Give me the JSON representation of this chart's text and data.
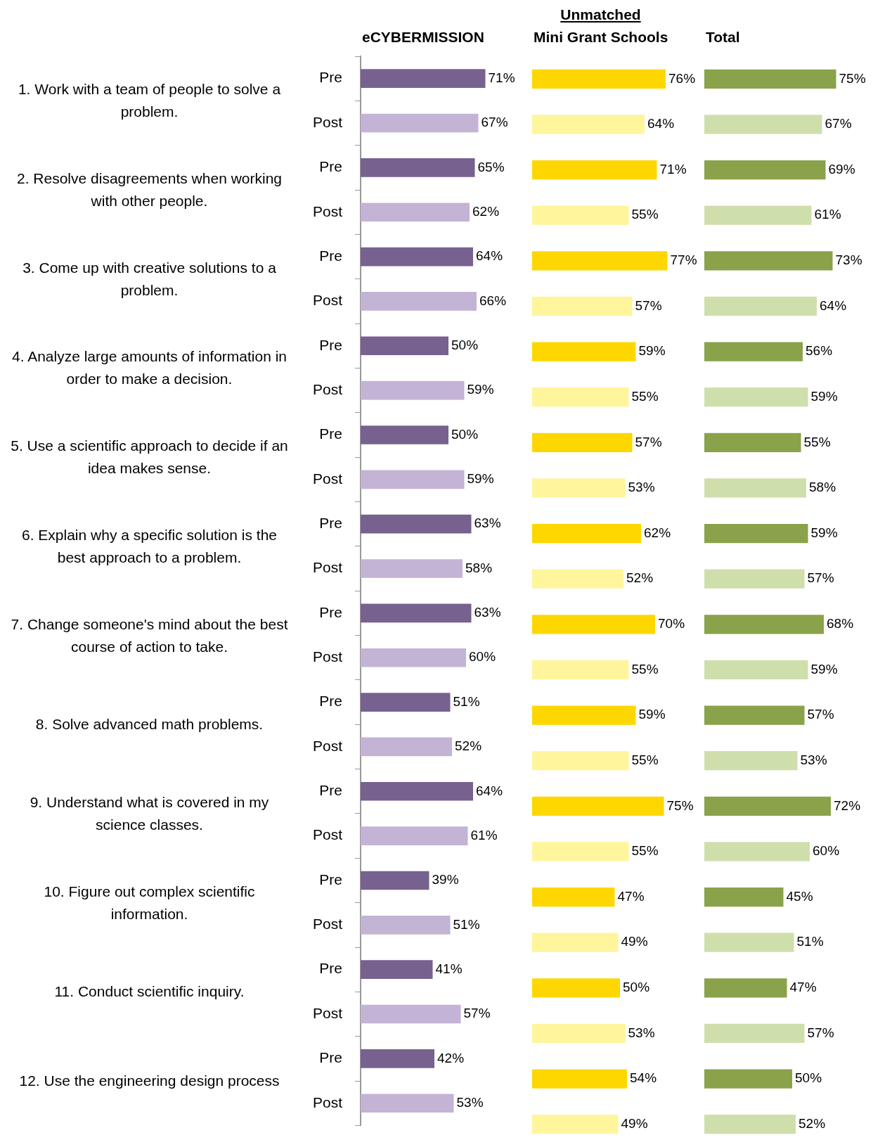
{
  "chart_data": [
    {
      "type": "bar",
      "orientation": "horizontal",
      "title": "eCYBERMISSION",
      "tick_labels": "y",
      "categories": [
        "Pre",
        "Post",
        "Pre",
        "Post",
        "Pre",
        "Post",
        "Pre",
        "Post",
        "Pre",
        "Post",
        "Pre",
        "Post",
        "Pre",
        "Post",
        "Pre",
        "Post",
        "Pre",
        "Post",
        "Pre",
        "Post",
        "Pre",
        "Post",
        "Pre",
        "Post"
      ],
      "values": [
        71,
        67,
        65,
        62,
        64,
        66,
        50,
        59,
        50,
        59,
        63,
        58,
        63,
        60,
        51,
        52,
        64,
        61,
        39,
        51,
        41,
        57,
        42,
        53
      ],
      "value_labels": [
        "71%",
        "67%",
        "65%",
        "62%",
        "64%",
        "66%",
        "50%",
        "59%",
        "50%",
        "59%",
        "63%",
        "58%",
        "63%",
        "60%",
        "51%",
        "52%",
        "64%",
        "61%",
        "39%",
        "51%",
        "41%",
        "57%",
        "42%",
        "53%"
      ],
      "colors": [
        "#77618f",
        "#c3b3d5",
        "#77618f",
        "#c3b3d5",
        "#77618f",
        "#c3b3d5",
        "#77618f",
        "#c3b3d5",
        "#77618f",
        "#c3b3d5",
        "#77618f",
        "#c3b3d5",
        "#77618f",
        "#c3b3d5",
        "#77618f",
        "#c3b3d5",
        "#77618f",
        "#c3b3d5",
        "#77618f",
        "#c3b3d5",
        "#77618f",
        "#c3b3d5",
        "#77618f",
        "#c3b3d5"
      ],
      "annotations": [
        "1. Work with a team of people to solve a problem.",
        "2. Resolve disagreements when working with other people.",
        "3. Come up with creative solutions to a problem.",
        "4. Analyze large amounts of information in order to make a decision.",
        "5. Use a scientific approach to decide if an idea makes sense.",
        "6. Explain why a specific solution is the best approach to a problem.",
        "7. Change someone's mind about the best course of action to take.",
        "8. Solve advanced math problems.",
        "9. Understand what is covered in my science classes.",
        "10. Figure out complex scientific information.",
        "11. Conduct scientific inquiry.",
        "12. Use the engineering design process"
      ]
    },
    {
      "type": "bar",
      "orientation": "horizontal",
      "subtitle": "Unmatched",
      "title": "Mini Grant Schools",
      "tick_labels": false,
      "values": [
        76,
        64,
        71,
        55,
        77,
        57,
        59,
        55,
        57,
        53,
        62,
        52,
        70,
        55,
        59,
        55,
        75,
        55,
        47,
        49,
        50,
        53,
        54,
        49
      ],
      "value_labels": [
        "76%",
        "64%",
        "71%",
        "55%",
        "77%",
        "57%",
        "59%",
        "55%",
        "57%",
        "53%",
        "62%",
        "52%",
        "70%",
        "55%",
        "59%",
        "55%",
        "75%",
        "55%",
        "47%",
        "49%",
        "50%",
        "53%",
        "54%",
        "49%"
      ],
      "colors": [
        "#ffd700",
        "#fff59d",
        "#ffd700",
        "#fff59d",
        "#ffd700",
        "#fff59d",
        "#ffd700",
        "#fff59d",
        "#ffd700",
        "#fff59d",
        "#ffd700",
        "#fff59d",
        "#ffd700",
        "#fff59d",
        "#ffd700",
        "#fff59d",
        "#ffd700",
        "#fff59d",
        "#ffd700",
        "#fff59d",
        "#ffd700",
        "#fff59d",
        "#ffd700",
        "#fff59d"
      ]
    },
    {
      "type": "bar",
      "orientation": "horizontal",
      "title": "Total",
      "tick_labels": false,
      "values": [
        75,
        67,
        69,
        61,
        73,
        64,
        56,
        59,
        55,
        58,
        59,
        57,
        68,
        59,
        57,
        53,
        72,
        60,
        45,
        51,
        47,
        57,
        50,
        52
      ],
      "value_labels": [
        "75%",
        "67%",
        "69%",
        "61%",
        "73%",
        "64%",
        "56%",
        "59%",
        "55%",
        "58%",
        "59%",
        "57%",
        "68%",
        "59%",
        "57%",
        "53%",
        "72%",
        "60%",
        "45%",
        "51%",
        "47%",
        "57%",
        "50%",
        "52%"
      ],
      "colors": [
        "#8aa24a",
        "#cfdfac",
        "#8aa24a",
        "#cfdfac",
        "#8aa24a",
        "#cfdfac",
        "#8aa24a",
        "#cfdfac",
        "#8aa24a",
        "#cfdfac",
        "#8aa24a",
        "#cfdfac",
        "#8aa24a",
        "#cfdfac",
        "#8aa24a",
        "#cfdfac",
        "#8aa24a",
        "#cfdfac",
        "#8aa24a",
        "#cfdfac",
        "#8aa24a",
        "#cfdfac",
        "#8aa24a",
        "#cfdfac"
      ]
    }
  ]
}
